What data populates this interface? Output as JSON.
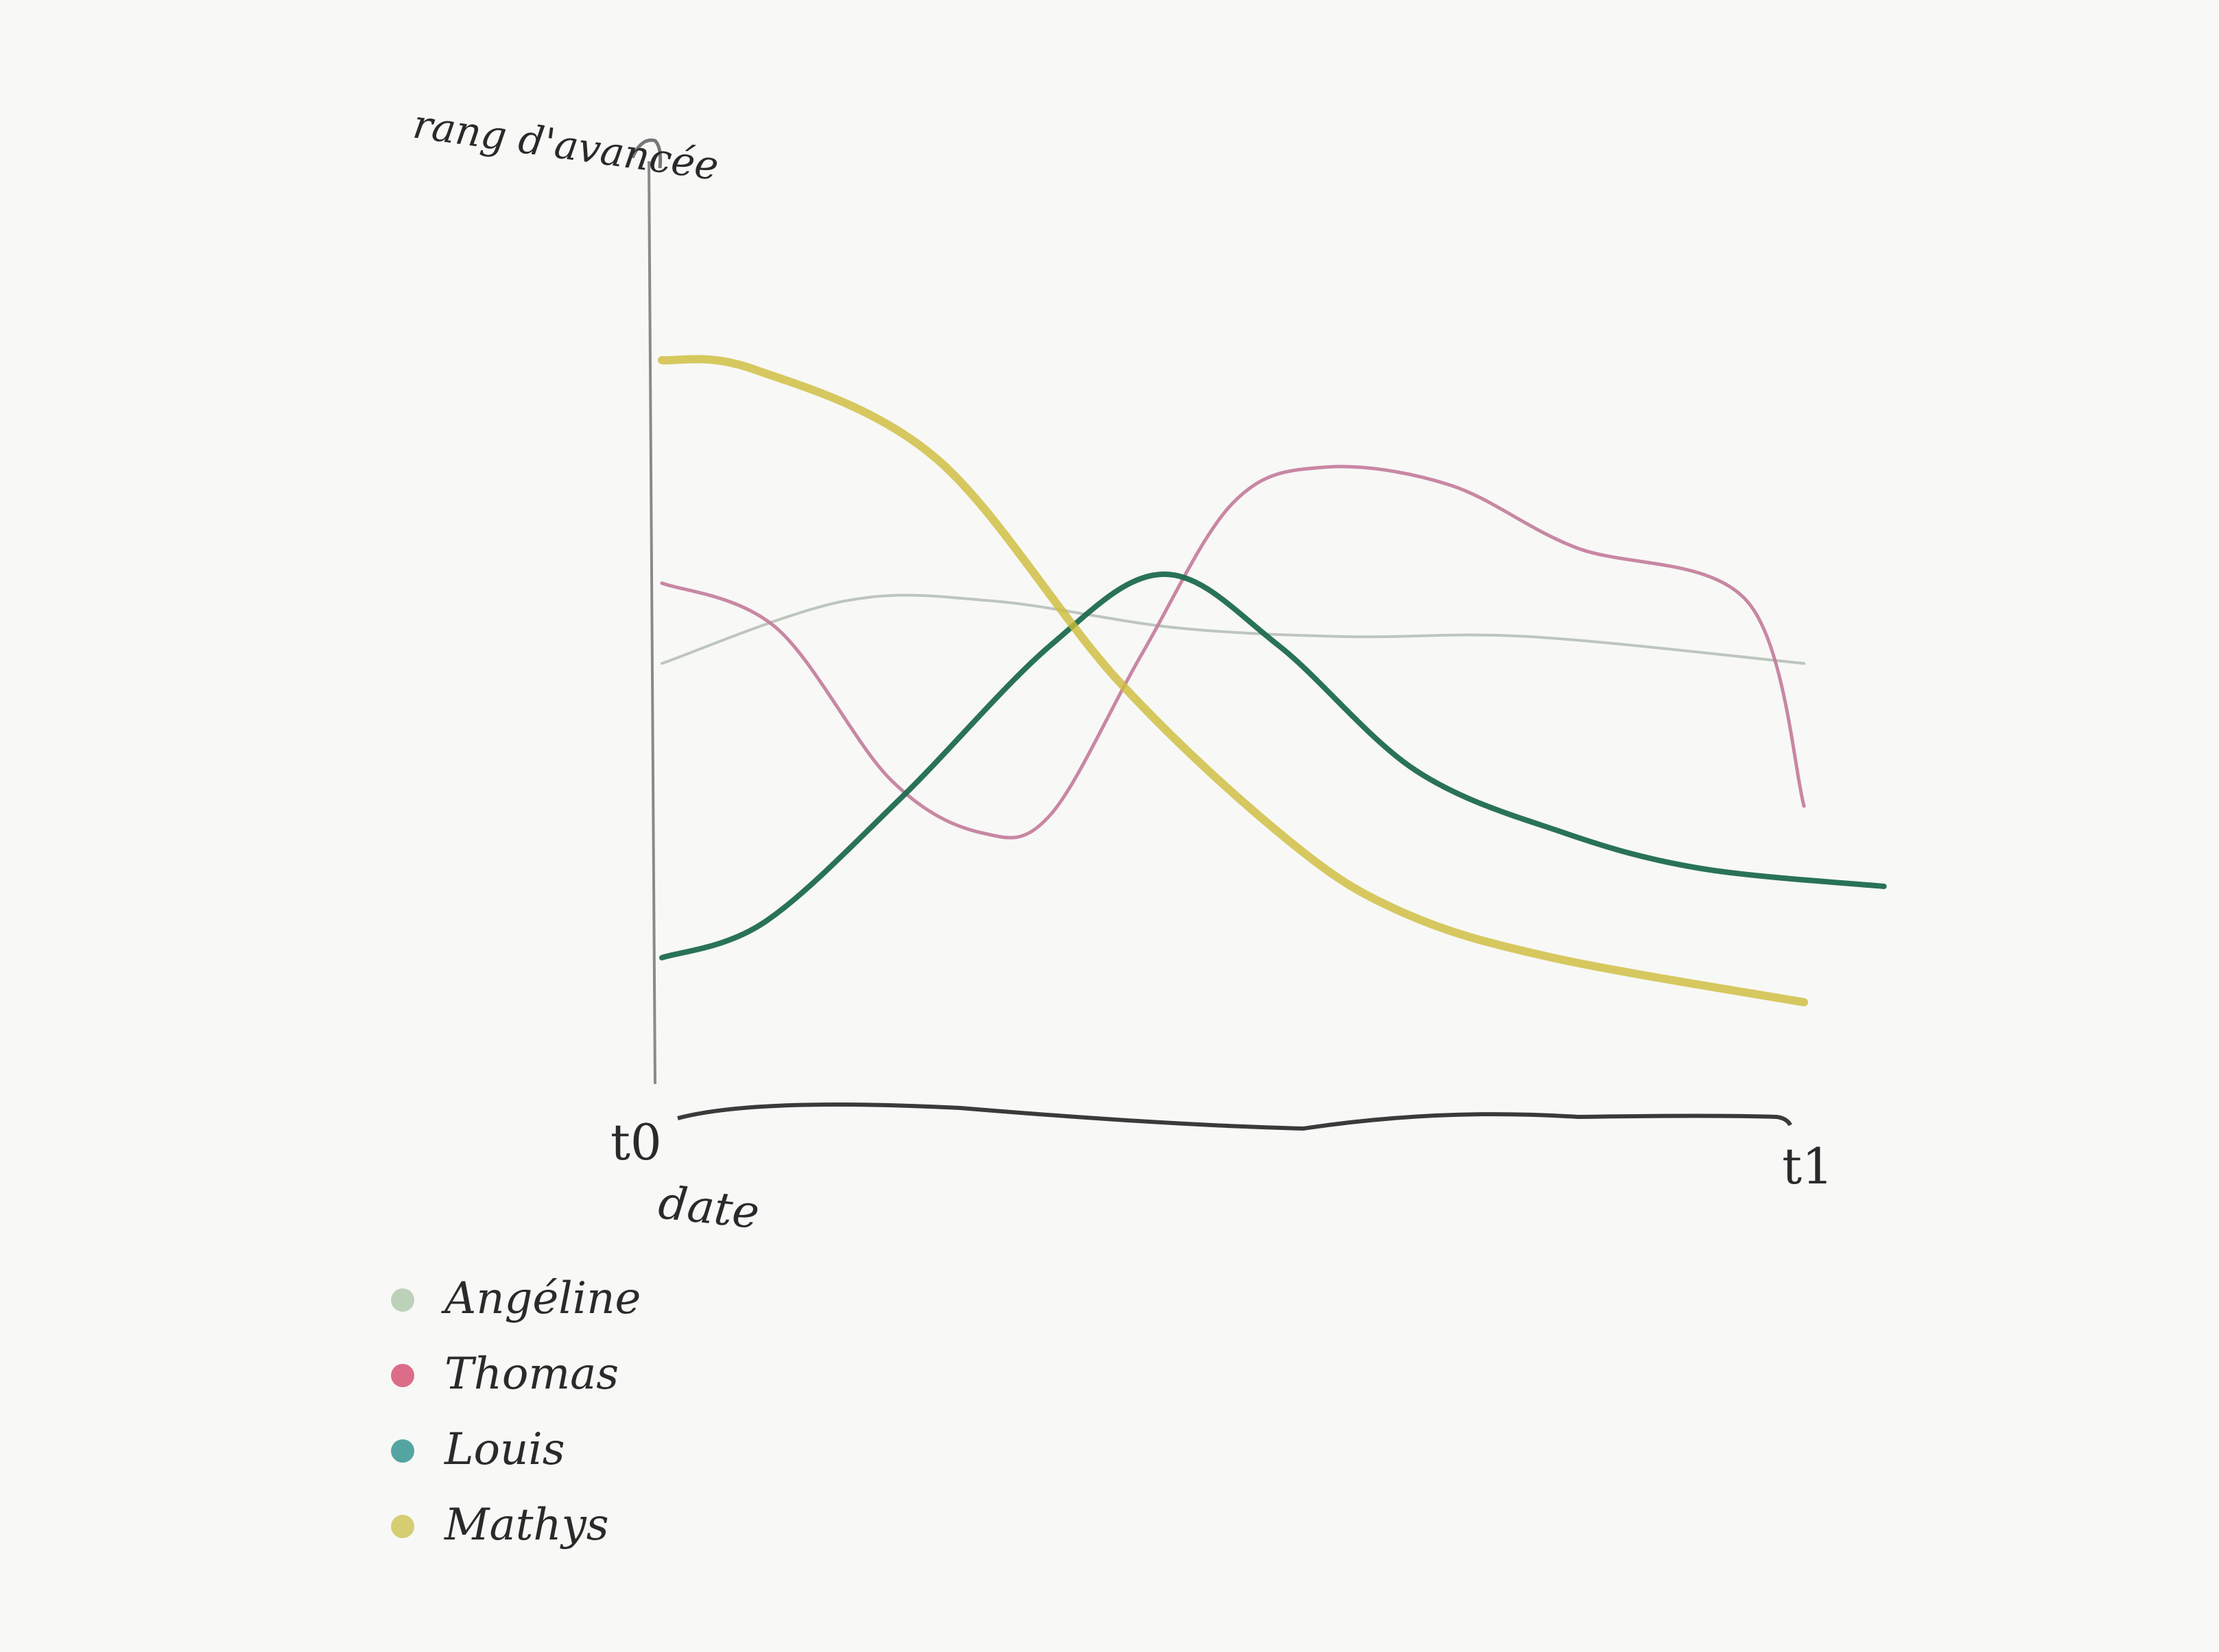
{
  "chart_data": {
    "type": "line",
    "ylabel": "rang d'avancée",
    "xlabel": "date",
    "x_ticks": [
      "t0",
      "t1"
    ],
    "xlim": [
      0,
      1
    ],
    "ylim": [
      0,
      10
    ],
    "grid": false,
    "legend_position": "bottom-left",
    "series": [
      {
        "name": "Angéline",
        "color": "#b3bdb3",
        "x": [
          0,
          0.16,
          0.29,
          0.45,
          0.6,
          0.76,
          1
        ],
        "y": [
          5.1,
          5.8,
          5.8,
          5.5,
          5.4,
          5.4,
          5.1
        ]
      },
      {
        "name": "Thomas",
        "color": "#c27a9a",
        "x": [
          0,
          0.1,
          0.2,
          0.28,
          0.34,
          0.42,
          0.5,
          0.58,
          0.69,
          0.8,
          0.95,
          1
        ],
        "y": [
          6.0,
          5.5,
          3.8,
          3.2,
          3.4,
          5.2,
          6.9,
          7.3,
          7.1,
          6.4,
          5.8,
          3.5
        ]
      },
      {
        "name": "Louis",
        "color": "#1e6a4f",
        "x": [
          0,
          0.09,
          0.21,
          0.34,
          0.44,
          0.54,
          0.66,
          0.79,
          0.91,
          1.07
        ],
        "y": [
          1.8,
          2.2,
          3.6,
          5.3,
          6.1,
          5.3,
          3.9,
          3.2,
          2.8,
          2.6
        ]
      },
      {
        "name": "Mathys",
        "color": "#cdbb3a",
        "x": [
          0,
          0.08,
          0.24,
          0.4,
          0.55,
          0.65,
          0.78,
          1
        ],
        "y": [
          8.5,
          8.4,
          7.4,
          4.9,
          3.1,
          2.3,
          1.8,
          1.3
        ]
      }
    ]
  },
  "legend": {
    "items": [
      {
        "label": "Angéline",
        "color": "#a9c4a4"
      },
      {
        "label": "Thomas",
        "color": "#d23f63"
      },
      {
        "label": "Louis",
        "color": "#1d8a84"
      },
      {
        "label": "Mathys",
        "color": "#c9bf45"
      }
    ]
  }
}
